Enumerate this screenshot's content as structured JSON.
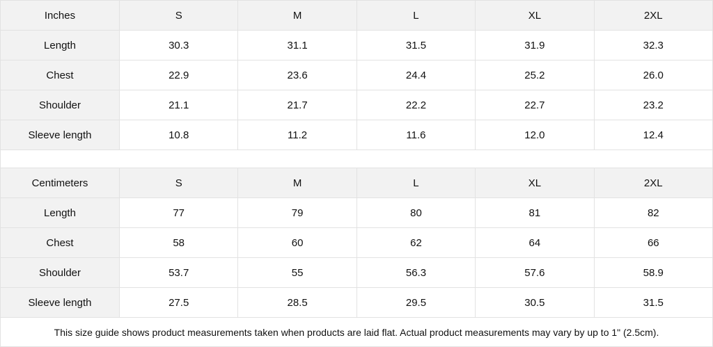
{
  "inches": {
    "header": [
      "Inches",
      "S",
      "M",
      "L",
      "XL",
      "2XL"
    ],
    "rows": [
      [
        "Length",
        "30.3",
        "31.1",
        "31.5",
        "31.9",
        "32.3"
      ],
      [
        "Chest",
        "22.9",
        "23.6",
        "24.4",
        "25.2",
        "26.0"
      ],
      [
        "Shoulder",
        "21.1",
        "21.7",
        "22.2",
        "22.7",
        "23.2"
      ],
      [
        "Sleeve length",
        "10.8",
        "11.2",
        "11.6",
        "12.0",
        "12.4"
      ]
    ]
  },
  "centimeters": {
    "header": [
      "Centimeters",
      "S",
      "M",
      "L",
      "XL",
      "2XL"
    ],
    "rows": [
      [
        "Length",
        "77",
        "79",
        "80",
        "81",
        "82"
      ],
      [
        "Chest",
        "58",
        "60",
        "62",
        "64",
        "66"
      ],
      [
        "Shoulder",
        "53.7",
        "55",
        "56.3",
        "57.6",
        "58.9"
      ],
      [
        "Sleeve length",
        "27.5",
        "28.5",
        "29.5",
        "30.5",
        "31.5"
      ]
    ]
  },
  "note": "This size guide shows product measurements taken when products are laid flat.  Actual product measurements may vary by up to 1\" (2.5cm).",
  "colors": {
    "header_bg": "#f2f2f2",
    "border": "#e2e2e2"
  }
}
